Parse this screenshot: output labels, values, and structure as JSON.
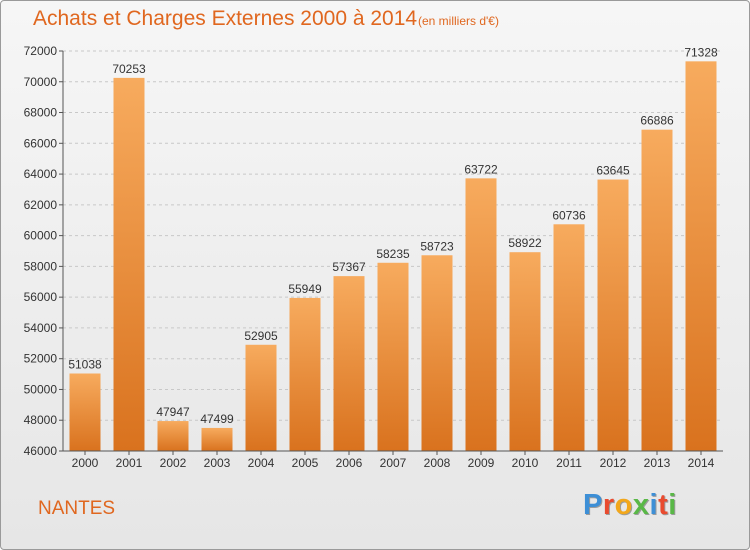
{
  "title": "Achats et Charges Externes 2000 à 2014",
  "unit_note": "(en milliers d'€)",
  "city": "NANTES",
  "logo": {
    "letters": [
      "P",
      "r",
      "o",
      "x",
      "i",
      "t",
      "i"
    ],
    "colors": [
      "#3d8fd6",
      "#e94b2f",
      "#f2a71b",
      "#59b847",
      "#3d8fd6",
      "#e94b2f",
      "#59b847"
    ]
  },
  "colors": {
    "accent": "#e0671f",
    "bar_light": "#f6a85a",
    "bar_dark": "#d9721e",
    "grid": "#c8c8c8"
  },
  "chart_data": {
    "type": "bar",
    "title": "Achats et Charges Externes 2000 à 2014",
    "categories": [
      "2000",
      "2001",
      "2002",
      "2003",
      "2004",
      "2005",
      "2006",
      "2007",
      "2008",
      "2009",
      "2010",
      "2011",
      "2012",
      "2013",
      "2014"
    ],
    "values": [
      51038,
      70253,
      47947,
      47499,
      52905,
      55949,
      57367,
      58235,
      58723,
      63722,
      58922,
      60736,
      63645,
      66886,
      71328
    ],
    "ylim": [
      46000,
      72000
    ],
    "yticks": [
      46000,
      48000,
      50000,
      52000,
      54000,
      56000,
      58000,
      60000,
      62000,
      64000,
      66000,
      68000,
      70000,
      72000
    ],
    "grid": true
  }
}
